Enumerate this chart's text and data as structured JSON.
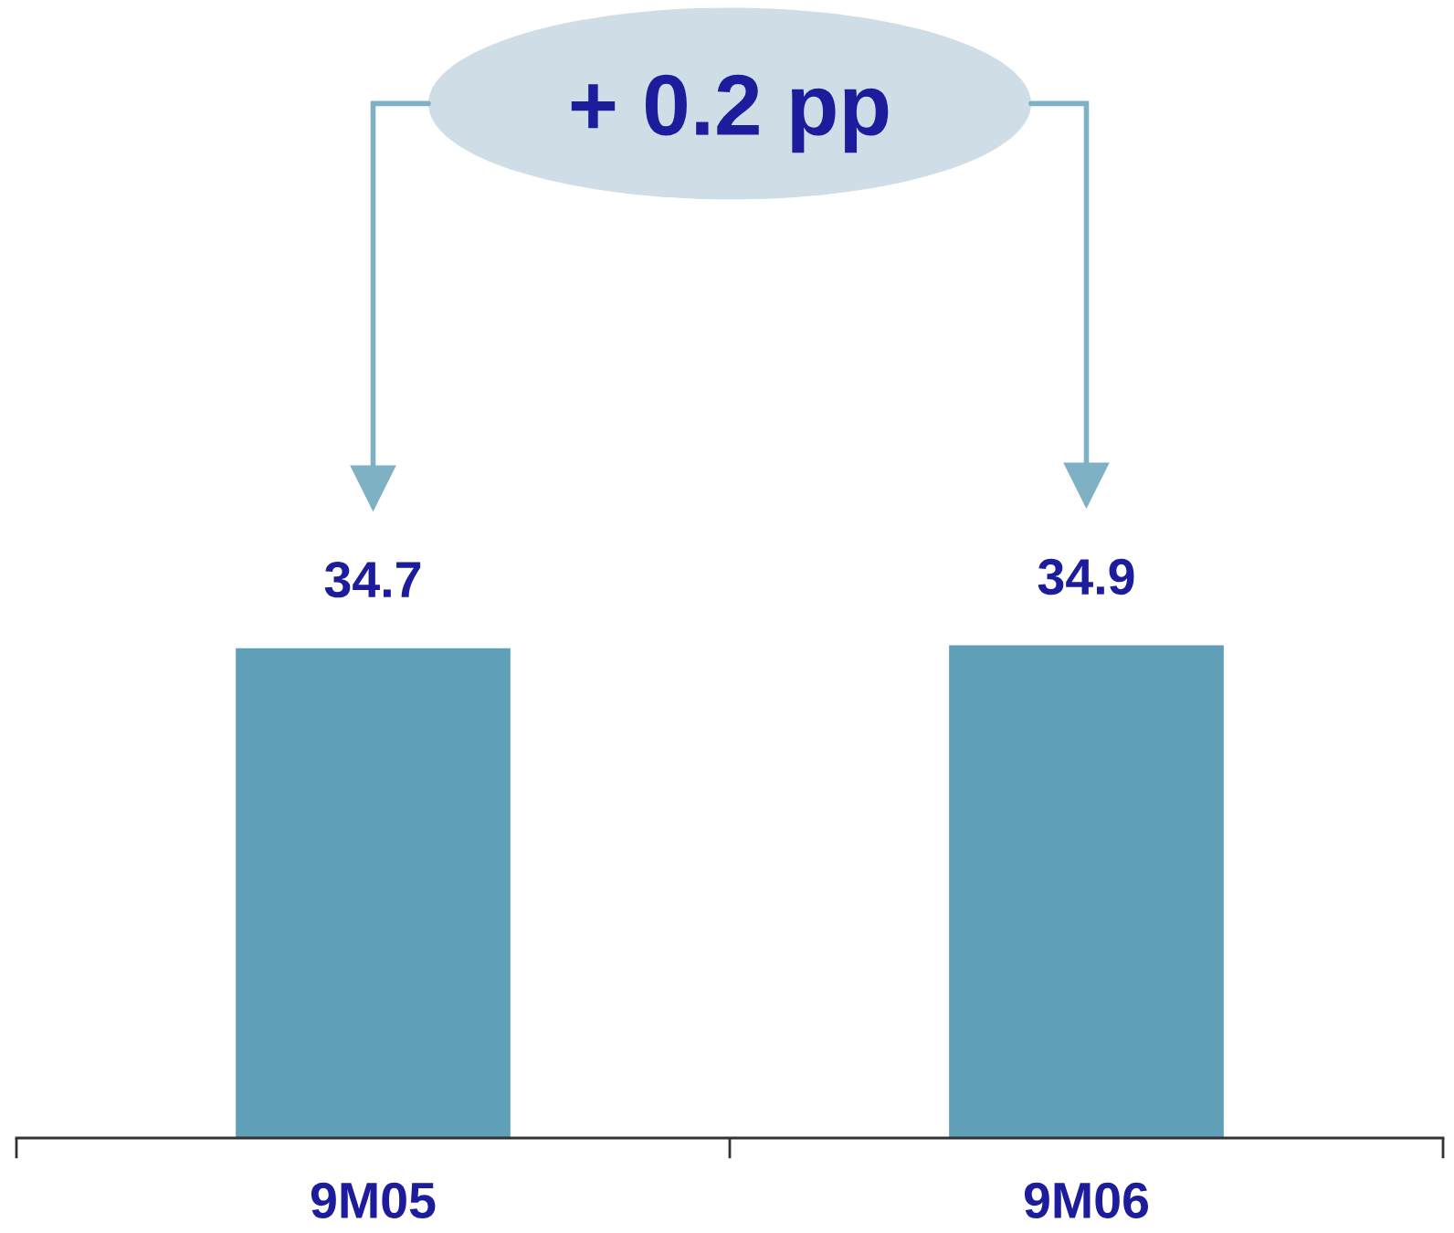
{
  "chart_data": {
    "type": "bar",
    "categories": [
      "9M05",
      "9M06"
    ],
    "values": [
      34.7,
      34.9
    ],
    "color": "#5f9fb8",
    "data_labels": true,
    "annotations": [
      "+ 0.2 pp"
    ]
  }
}
